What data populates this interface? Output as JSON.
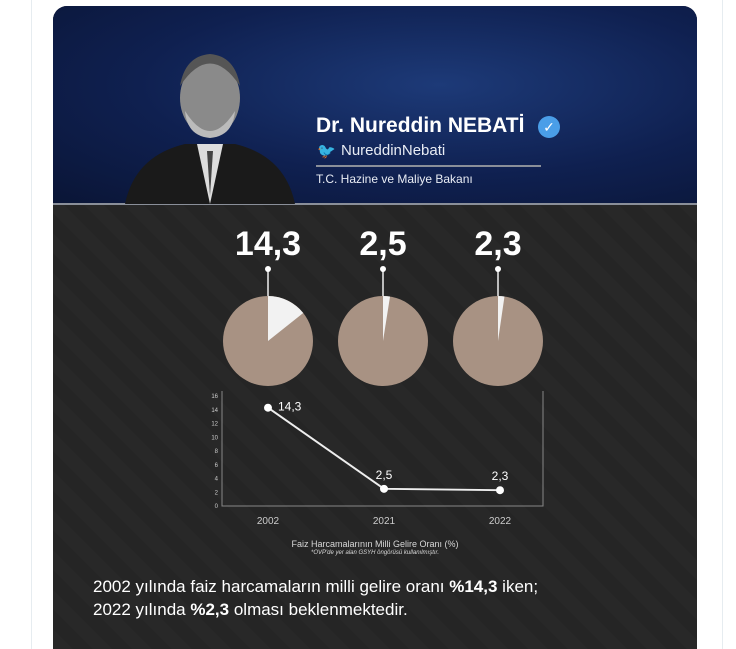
{
  "header": {
    "name": "Dr. Nureddin NEBATİ",
    "handle": "NureddinNebati",
    "role": "T.C. Hazine ve Maliye Bakanı"
  },
  "big_values": [
    "14,3",
    "2,5",
    "2,3"
  ],
  "colors": {
    "pie": "#a89283",
    "slice": "#f2f2f2",
    "header": "#14285e",
    "background": "#262626"
  },
  "chart_data": {
    "type": "line",
    "categories": [
      "2002",
      "2021",
      "2022"
    ],
    "values": [
      14.3,
      2.5,
      2.3
    ],
    "data_labels": [
      "14,3",
      "2,5",
      "2,3"
    ],
    "yticks": [
      "0",
      "2",
      "4",
      "6",
      "8",
      "10",
      "12",
      "14",
      "16"
    ],
    "ylim": [
      0,
      16
    ],
    "xlabel": "Faiz Harcamalarının Milli Gelire Oranı (%)",
    "note": "*OVP'de yer alan GSYH öngörüsü kullanılmıştır.",
    "pies": [
      {
        "label": "14,3",
        "percent": 14.3
      },
      {
        "label": "2,5",
        "percent": 2.5
      },
      {
        "label": "2,3",
        "percent": 2.3
      }
    ]
  },
  "text": {
    "line1_a": "2002 yılında faiz harcamaların milli gelire oranı ",
    "line1_b": "%14,3",
    "line1_c": " iken;",
    "line2_a": "2022 yılında ",
    "line2_b": "%2,3",
    "line2_c": " olması beklenmektedir."
  }
}
